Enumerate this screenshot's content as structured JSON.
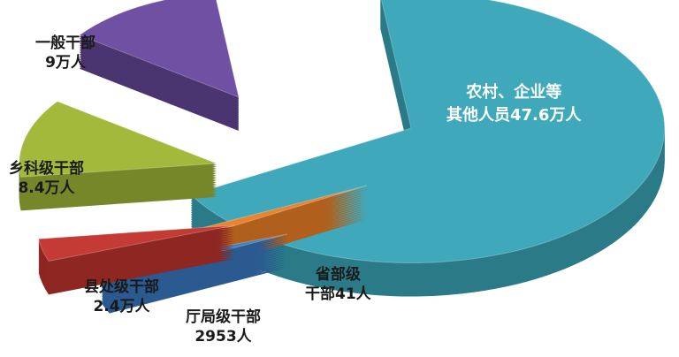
{
  "chart_data": {
    "type": "pie",
    "style": "3d-exploded",
    "slices": [
      {
        "name_line1": "农村、企业等",
        "name_line2": "其他人员47.6万人",
        "label": "农村、企业等其他人员",
        "value": 476000,
        "display": "47.6万人",
        "color": "#3fa9bb",
        "side_color": "#2b7a88"
      },
      {
        "name_line1": "省部级",
        "name_line2": "干部41人",
        "label": "省部级干部",
        "value": 41,
        "display": "41人",
        "color": "#e8842e",
        "side_color": "#b0601c"
      },
      {
        "name_line1": "厅局级干部",
        "name_line2": "2953人",
        "label": "厅局级干部",
        "value": 2953,
        "display": "2953人",
        "color": "#3d7fc4",
        "side_color": "#2a5a90"
      },
      {
        "name_line1": "县处级干部",
        "name_line2": "2.4万人",
        "label": "县处级干部",
        "value": 24000,
        "display": "2.4万人",
        "color": "#c43a34",
        "side_color": "#8e2622"
      },
      {
        "name_line1": "乡科级干部",
        "name_line2": "8.4万人",
        "label": "乡科级干部",
        "value": 84000,
        "display": "8.4万人",
        "color": "#a3b93c",
        "side_color": "#76872a"
      },
      {
        "name_line1": "一般干部",
        "name_line2": "9万人",
        "label": "一般干部",
        "value": 90000,
        "display": "9万人",
        "color": "#7050a3",
        "side_color": "#4a3570"
      }
    ],
    "legend": "none"
  }
}
